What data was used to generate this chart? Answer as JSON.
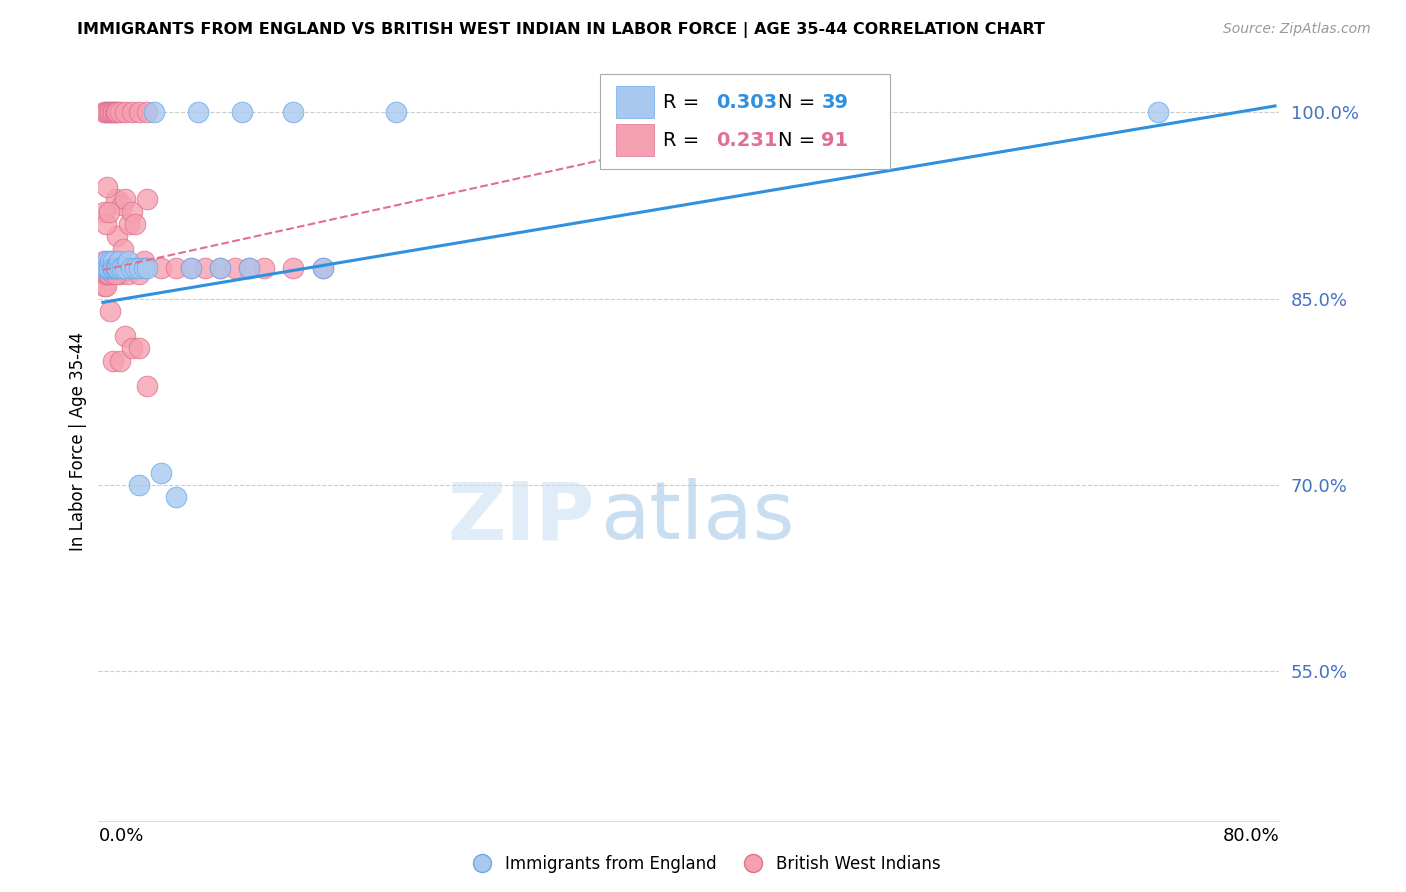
{
  "title": "IMMIGRANTS FROM ENGLAND VS BRITISH WEST INDIAN IN LABOR FORCE | AGE 35-44 CORRELATION CHART",
  "source": "Source: ZipAtlas.com",
  "ylabel": "In Labor Force | Age 35-44",
  "yticks": [
    1.0,
    0.85,
    0.7,
    0.55
  ],
  "ytick_labels": [
    "100.0%",
    "85.0%",
    "70.0%",
    "55.0%"
  ],
  "legend1_r": "0.303",
  "legend1_n": "39",
  "legend2_r": "0.231",
  "legend2_n": "91",
  "england_color": "#a8c8f0",
  "england_edge": "#6aaae8",
  "bwi_color": "#f5a0b0",
  "bwi_edge": "#e07090",
  "eng_line_color": "#3090e0",
  "bwi_line_color": "#e07090",
  "grid_color": "#cccccc",
  "right_label_color": "#4472c4",
  "xmin": 0.0,
  "xmax": 0.8,
  "ymin": 0.43,
  "ymax": 1.04,
  "eng_line_x": [
    0.0,
    0.8
  ],
  "eng_line_y": [
    0.847,
    1.005
  ],
  "bwi_line_x": [
    0.0,
    0.5
  ],
  "bwi_line_y": [
    0.873,
    1.003
  ],
  "eng_x": [
    0.001,
    0.002,
    0.003,
    0.003,
    0.004,
    0.004,
    0.005,
    0.006,
    0.006,
    0.007,
    0.007,
    0.008,
    0.009,
    0.01,
    0.01,
    0.011,
    0.012,
    0.013,
    0.015,
    0.017,
    0.019,
    0.022,
    0.025,
    0.028,
    0.03,
    0.025,
    0.035,
    0.05,
    0.065,
    0.095,
    0.13,
    0.2,
    0.48,
    0.72,
    0.04,
    0.06,
    0.08,
    0.1,
    0.15
  ],
  "eng_y": [
    0.875,
    0.875,
    0.88,
    0.875,
    0.875,
    0.875,
    0.88,
    0.875,
    0.875,
    0.88,
    0.875,
    0.875,
    0.875,
    0.875,
    0.875,
    0.88,
    0.875,
    0.875,
    0.875,
    0.88,
    0.875,
    0.875,
    0.875,
    0.875,
    0.875,
    0.7,
    1.0,
    0.69,
    1.0,
    1.0,
    1.0,
    1.0,
    1.0,
    1.0,
    0.71,
    0.875,
    0.875,
    0.875,
    0.875
  ],
  "bwi_x": [
    0.001,
    0.001,
    0.001,
    0.001,
    0.001,
    0.001,
    0.001,
    0.001,
    0.002,
    0.002,
    0.002,
    0.002,
    0.002,
    0.002,
    0.002,
    0.002,
    0.003,
    0.003,
    0.003,
    0.003,
    0.003,
    0.003,
    0.003,
    0.004,
    0.004,
    0.004,
    0.004,
    0.004,
    0.005,
    0.005,
    0.005,
    0.005,
    0.006,
    0.006,
    0.006,
    0.007,
    0.007,
    0.007,
    0.008,
    0.008,
    0.009,
    0.01,
    0.01,
    0.012,
    0.013,
    0.014,
    0.015,
    0.017,
    0.018,
    0.02,
    0.022,
    0.025,
    0.028,
    0.03,
    0.001,
    0.002,
    0.003,
    0.004,
    0.005,
    0.006,
    0.007,
    0.008,
    0.009,
    0.01,
    0.012,
    0.015,
    0.02,
    0.025,
    0.03,
    0.04,
    0.05,
    0.06,
    0.07,
    0.08,
    0.09,
    0.1,
    0.11,
    0.13,
    0.15,
    0.001,
    0.002,
    0.003,
    0.004,
    0.005,
    0.007,
    0.009,
    0.012,
    0.015,
    0.02,
    0.025,
    0.03
  ],
  "bwi_y": [
    0.875,
    0.875,
    0.87,
    0.87,
    0.88,
    0.875,
    0.875,
    0.86,
    0.875,
    0.875,
    0.87,
    0.87,
    0.875,
    0.875,
    0.86,
    0.87,
    0.875,
    0.875,
    0.875,
    0.87,
    0.875,
    0.875,
    0.875,
    0.875,
    0.875,
    0.87,
    0.87,
    0.875,
    0.875,
    0.875,
    0.875,
    0.875,
    0.875,
    0.875,
    0.875,
    0.875,
    0.875,
    0.87,
    0.875,
    0.875,
    0.93,
    0.9,
    0.88,
    0.87,
    0.925,
    0.89,
    0.93,
    0.87,
    0.91,
    0.92,
    0.91,
    0.87,
    0.88,
    0.93,
    1.0,
    1.0,
    1.0,
    1.0,
    1.0,
    1.0,
    1.0,
    1.0,
    1.0,
    1.0,
    1.0,
    1.0,
    1.0,
    1.0,
    1.0,
    0.875,
    0.875,
    0.875,
    0.875,
    0.875,
    0.875,
    0.875,
    0.875,
    0.875,
    0.875,
    0.92,
    0.91,
    0.94,
    0.92,
    0.84,
    0.8,
    0.87,
    0.8,
    0.82,
    0.81,
    0.81,
    0.78
  ]
}
